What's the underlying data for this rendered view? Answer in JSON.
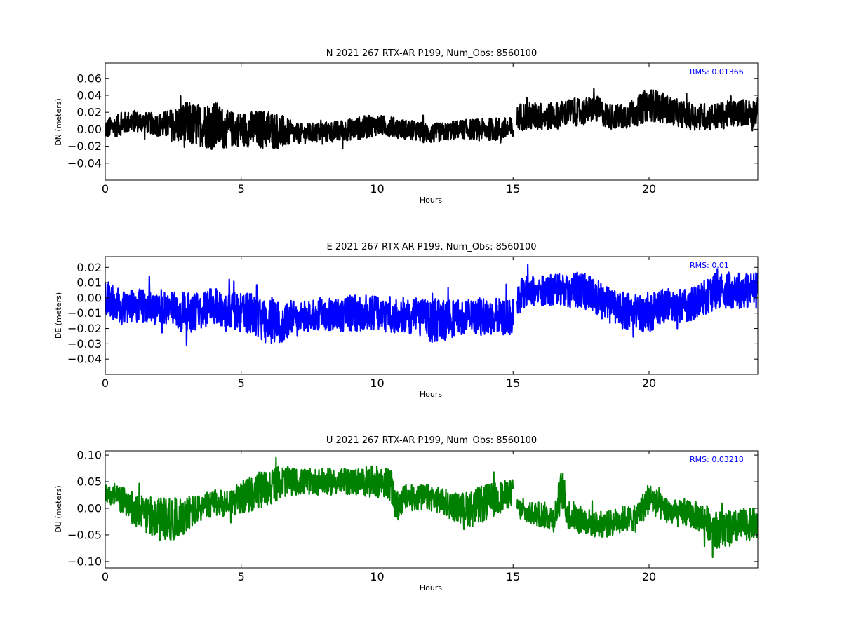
{
  "chart_data": [
    {
      "type": "line",
      "component": "N",
      "title": "N 2021 267 RTX-AR  P199, Num_Obs: 8560100",
      "xlabel": "Hours",
      "ylabel": "DN (meters)",
      "xlim": [
        0,
        24
      ],
      "ylim": [
        -0.06,
        0.078
      ],
      "xticks": [
        0,
        5,
        10,
        15,
        20
      ],
      "yticks": [
        -0.04,
        -0.02,
        0.0,
        0.02,
        0.04,
        0.06
      ],
      "ytick_labels": [
        "−0.04",
        "−0.02",
        "0.00",
        "0.02",
        "0.04",
        "0.06"
      ],
      "color": "#000000",
      "rms_label": "RMS:  0.01366",
      "rms_color": "#0000ff",
      "gap_hours": [
        15.0,
        15.15
      ],
      "series": {
        "x": [
          0,
          0.5,
          1,
          1.5,
          2,
          2.5,
          3,
          3.5,
          4,
          4.5,
          5,
          5.5,
          6,
          6.5,
          7,
          7.5,
          8,
          8.5,
          9,
          9.5,
          10,
          10.5,
          11,
          11.5,
          12,
          12.5,
          13,
          13.5,
          14,
          14.5,
          15,
          15.2,
          15.5,
          16,
          16.5,
          17,
          17.5,
          18,
          18.5,
          19,
          19.5,
          20,
          20.5,
          21,
          21.5,
          22,
          22.5,
          23,
          23.5,
          24
        ],
        "mean": [
          0.0,
          0.005,
          0.01,
          0.008,
          0.005,
          0.005,
          0.005,
          0.005,
          0.005,
          0.0,
          0.0,
          0.0,
          0.0,
          -0.003,
          -0.005,
          -0.005,
          -0.003,
          -0.003,
          0.0,
          0.002,
          0.005,
          0.003,
          0.0,
          -0.003,
          -0.005,
          -0.003,
          0.0,
          0.0,
          0.0,
          0.0,
          0.0,
          0.015,
          0.015,
          0.015,
          0.015,
          0.02,
          0.02,
          0.025,
          0.015,
          0.015,
          0.02,
          0.03,
          0.025,
          0.02,
          0.015,
          0.015,
          0.015,
          0.018,
          0.02,
          0.02
        ],
        "amplitude": [
          0.012,
          0.013,
          0.013,
          0.012,
          0.014,
          0.02,
          0.028,
          0.025,
          0.03,
          0.022,
          0.02,
          0.022,
          0.024,
          0.02,
          0.012,
          0.012,
          0.012,
          0.013,
          0.013,
          0.014,
          0.012,
          0.012,
          0.012,
          0.012,
          0.012,
          0.011,
          0.011,
          0.012,
          0.013,
          0.014,
          0.014,
          0.016,
          0.017,
          0.017,
          0.016,
          0.016,
          0.016,
          0.016,
          0.015,
          0.015,
          0.017,
          0.02,
          0.018,
          0.016,
          0.016,
          0.016,
          0.016,
          0.016,
          0.016,
          0.017
        ]
      }
    },
    {
      "type": "line",
      "component": "E",
      "title": "E 2021 267 RTX-AR  P199, Num_Obs: 8560100",
      "xlabel": "Hours",
      "ylabel": "DE (meters)",
      "xlim": [
        0,
        24
      ],
      "ylim": [
        -0.05,
        0.027
      ],
      "xticks": [
        0,
        5,
        10,
        15,
        20
      ],
      "yticks": [
        -0.04,
        -0.03,
        -0.02,
        -0.01,
        0.0,
        0.01,
        0.02
      ],
      "ytick_labels": [
        "−0.04",
        "−0.03",
        "−0.02",
        "−0.01",
        "0.00",
        "0.01",
        "0.02"
      ],
      "color": "#0000ff",
      "rms_label": "RMS:  0.01",
      "rms_color": "#0000ff",
      "gap_hours": [
        15.0,
        15.15
      ],
      "series": {
        "x": [
          0,
          0.5,
          1,
          1.5,
          2,
          2.5,
          3,
          3.5,
          4,
          4.5,
          5,
          5.5,
          6,
          6.5,
          7,
          7.5,
          8,
          8.5,
          9,
          9.5,
          10,
          10.5,
          11,
          11.5,
          12,
          12.5,
          13,
          13.5,
          14,
          14.5,
          15,
          15.2,
          15.5,
          16,
          16.5,
          17,
          17.5,
          18,
          18.5,
          19,
          19.5,
          20,
          20.5,
          21,
          21.5,
          22,
          22.5,
          23,
          23.5,
          24
        ],
        "mean": [
          0.0,
          -0.005,
          -0.005,
          -0.005,
          -0.005,
          -0.008,
          -0.01,
          -0.008,
          -0.005,
          -0.008,
          -0.01,
          -0.01,
          -0.015,
          -0.015,
          -0.012,
          -0.012,
          -0.01,
          -0.012,
          -0.01,
          -0.01,
          -0.01,
          -0.012,
          -0.012,
          -0.012,
          -0.015,
          -0.015,
          -0.012,
          -0.012,
          -0.012,
          -0.012,
          -0.012,
          0.002,
          0.005,
          0.005,
          0.005,
          0.005,
          0.005,
          0.002,
          -0.005,
          -0.008,
          -0.01,
          -0.01,
          -0.005,
          -0.005,
          -0.005,
          0.0,
          0.005,
          0.005,
          0.005,
          0.005
        ],
        "amplitude": [
          0.012,
          0.011,
          0.011,
          0.011,
          0.011,
          0.012,
          0.014,
          0.012,
          0.012,
          0.012,
          0.013,
          0.014,
          0.016,
          0.014,
          0.01,
          0.01,
          0.011,
          0.011,
          0.012,
          0.012,
          0.011,
          0.011,
          0.011,
          0.012,
          0.015,
          0.013,
          0.012,
          0.012,
          0.012,
          0.012,
          0.012,
          0.01,
          0.01,
          0.01,
          0.011,
          0.011,
          0.012,
          0.012,
          0.012,
          0.012,
          0.012,
          0.013,
          0.011,
          0.011,
          0.011,
          0.012,
          0.012,
          0.012,
          0.012,
          0.012
        ]
      }
    },
    {
      "type": "line",
      "component": "U",
      "title": "U 2021 267 RTX-AR  P199, Num_Obs: 8560100",
      "xlabel": "Hours",
      "ylabel": "DU (meters)",
      "xlim": [
        0,
        24
      ],
      "ylim": [
        -0.112,
        0.108
      ],
      "xticks": [
        0,
        5,
        10,
        15,
        20
      ],
      "yticks": [
        -0.1,
        -0.05,
        0.0,
        0.05,
        0.1
      ],
      "ytick_labels": [
        "−0.10",
        "−0.05",
        "0.00",
        "0.05",
        "0.10"
      ],
      "color": "#008000",
      "rms_label": "RMS:  0.03218",
      "rms_color": "#0000ff",
      "gap_hours": [
        15.0,
        15.15
      ],
      "series": {
        "x": [
          0,
          0.5,
          1,
          1.5,
          2,
          2.5,
          3,
          3.5,
          4,
          4.5,
          5,
          5.5,
          6,
          6.5,
          7,
          7.5,
          8,
          8.5,
          9,
          9.5,
          10,
          10.5,
          10.7,
          11,
          11.5,
          12,
          12.5,
          13,
          13.5,
          14,
          14.5,
          15,
          15.2,
          15.5,
          16,
          16.5,
          16.8,
          17,
          17.5,
          18,
          18.5,
          19,
          19.5,
          20,
          20.5,
          21,
          21.5,
          22,
          22.5,
          23,
          23.5,
          24
        ],
        "mean": [
          0.03,
          0.02,
          0.0,
          -0.01,
          -0.02,
          -0.02,
          -0.01,
          0.0,
          0.01,
          0.01,
          0.02,
          0.03,
          0.04,
          0.05,
          0.05,
          0.05,
          0.05,
          0.05,
          0.05,
          0.05,
          0.05,
          0.045,
          0.0,
          0.02,
          0.02,
          0.02,
          0.01,
          0.0,
          0.0,
          0.01,
          0.02,
          0.03,
          0.0,
          -0.01,
          -0.01,
          -0.02,
          0.04,
          -0.01,
          -0.02,
          -0.03,
          -0.03,
          -0.02,
          -0.02,
          0.02,
          0.0,
          -0.01,
          -0.01,
          -0.02,
          -0.04,
          -0.04,
          -0.03,
          -0.03
        ],
        "amplitude": [
          0.02,
          0.025,
          0.03,
          0.035,
          0.04,
          0.04,
          0.035,
          0.025,
          0.025,
          0.025,
          0.03,
          0.035,
          0.035,
          0.03,
          0.025,
          0.025,
          0.025,
          0.025,
          0.025,
          0.028,
          0.03,
          0.03,
          0.03,
          0.025,
          0.025,
          0.025,
          0.025,
          0.028,
          0.035,
          0.035,
          0.03,
          0.025,
          0.02,
          0.02,
          0.025,
          0.025,
          0.04,
          0.03,
          0.025,
          0.025,
          0.025,
          0.025,
          0.025,
          0.03,
          0.025,
          0.025,
          0.025,
          0.03,
          0.035,
          0.035,
          0.03,
          0.03
        ]
      }
    }
  ]
}
